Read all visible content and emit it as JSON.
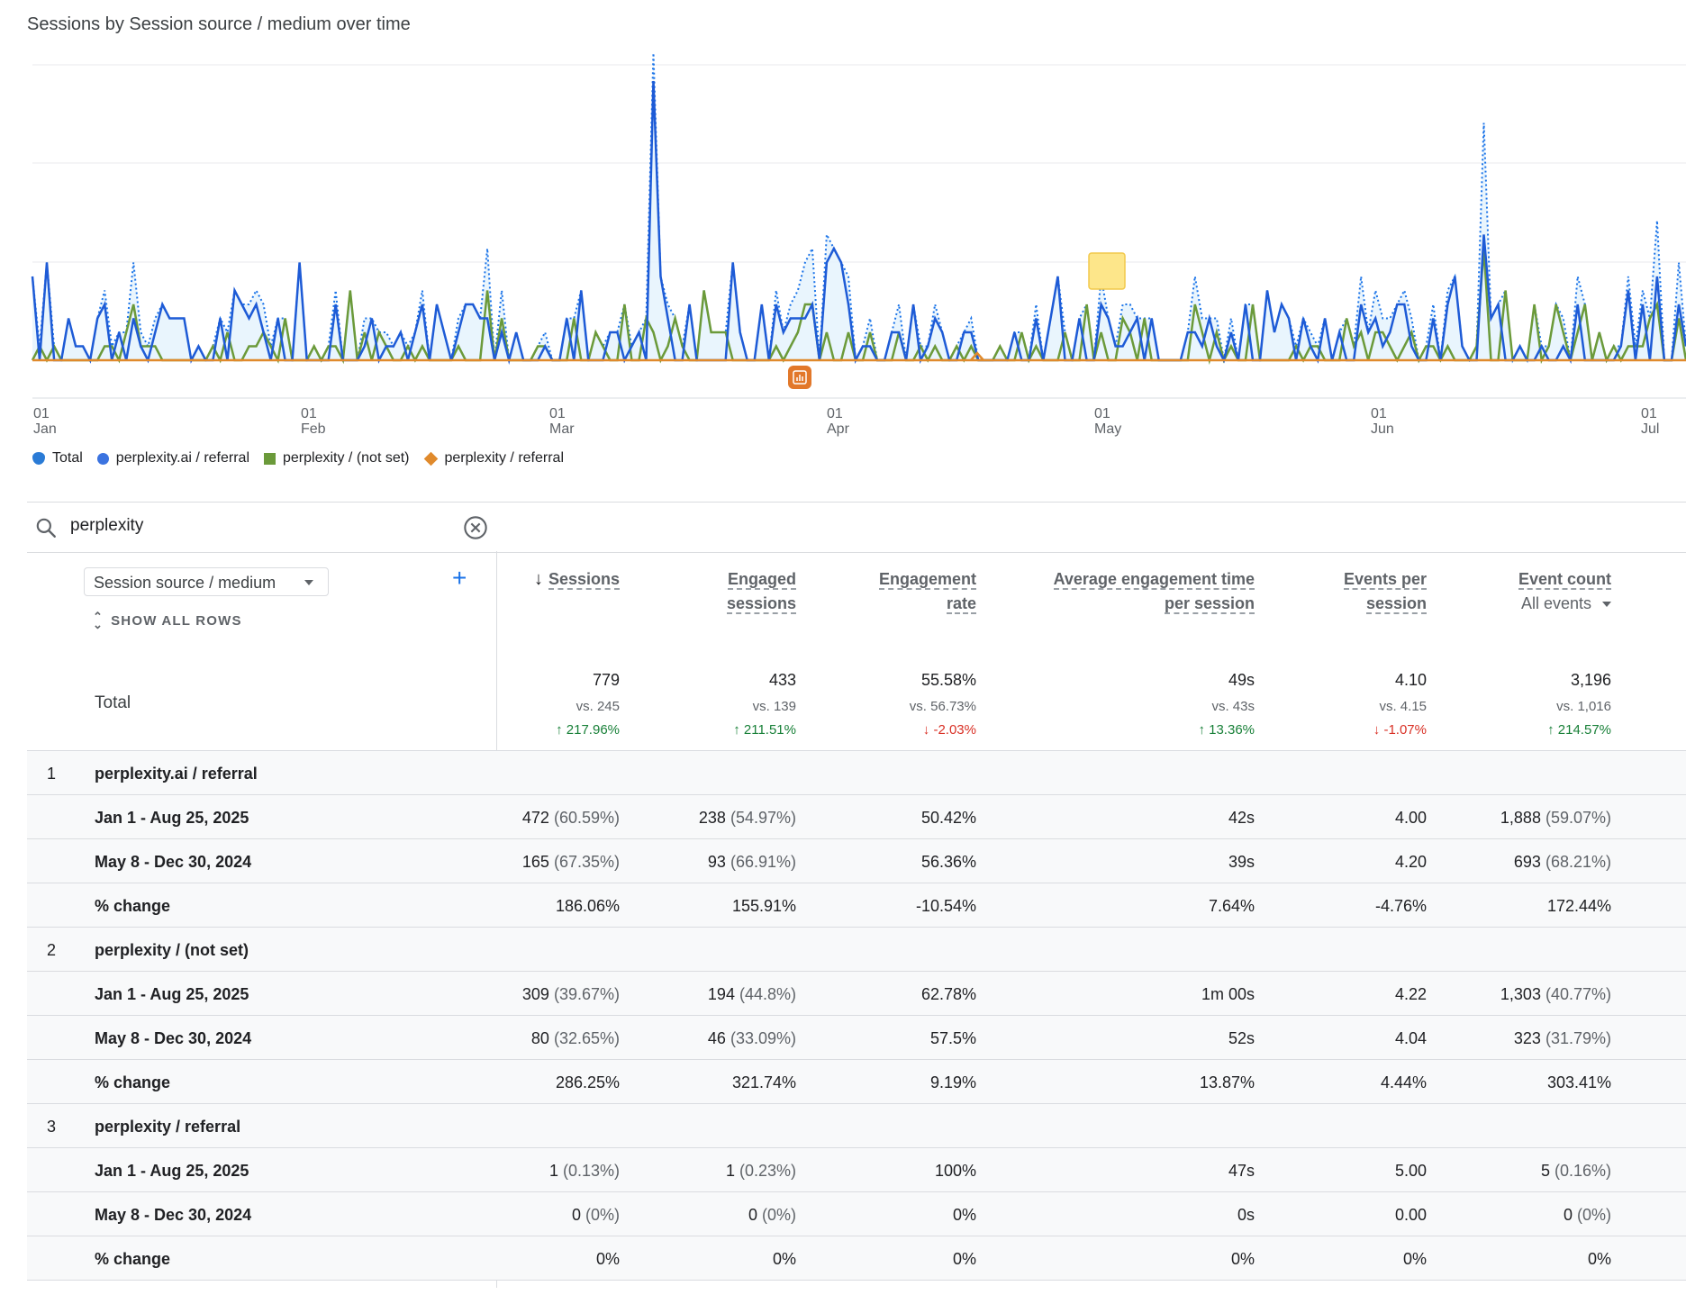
{
  "chart": {
    "title": "Sessions by Session source / medium over time",
    "x_ticks": [
      {
        "day": "01",
        "month": "Jan"
      },
      {
        "day": "01",
        "month": "Feb"
      },
      {
        "day": "01",
        "month": "Mar"
      },
      {
        "day": "01",
        "month": "Apr"
      },
      {
        "day": "01",
        "month": "May"
      },
      {
        "day": "01",
        "month": "Jun"
      },
      {
        "day": "01",
        "month": "Jul"
      }
    ],
    "colors": {
      "total": "#1a73e8",
      "perplexity_ai_referral": "#1e5bd6",
      "perplexity_not_set": "#6b9a3a",
      "perplexity_referral": "#e08a2c",
      "gridline": "#e8eaed",
      "fill": "#e3f2fd"
    }
  },
  "legend": [
    {
      "label": "Total",
      "shape": "total",
      "color": "#2a7bd6"
    },
    {
      "label": "perplexity.ai / referral",
      "shape": "dot",
      "color": "#3b73e0"
    },
    {
      "label": "perplexity / (not set)",
      "shape": "square",
      "color": "#6b9a3a"
    },
    {
      "label": "perplexity / referral",
      "shape": "diamond",
      "color": "#e08a2c"
    }
  ],
  "search": {
    "value": "perplexity"
  },
  "table": {
    "dimension_select": "Session source / medium",
    "add_label": "+",
    "show_all_rows": "SHOW ALL ROWS",
    "total_label": "Total",
    "columns": [
      {
        "line1": "Sessions",
        "line2": "",
        "sorted": true
      },
      {
        "line1": "Engaged",
        "line2": "sessions"
      },
      {
        "line1": "Engagement",
        "line2": "rate"
      },
      {
        "line1": "Average engagement time",
        "line2": "per session"
      },
      {
        "line1": "Events per",
        "line2": "session"
      },
      {
        "line1": "Event count",
        "line2": "All events",
        "select": true
      }
    ],
    "totals": [
      {
        "value": "779",
        "vs": "vs. 245",
        "change": "↑ 217.96%",
        "dir": "up"
      },
      {
        "value": "433",
        "vs": "vs. 139",
        "change": "↑ 211.51%",
        "dir": "up"
      },
      {
        "value": "55.58%",
        "vs": "vs. 56.73%",
        "change": "↓ -2.03%",
        "dir": "down"
      },
      {
        "value": "49s",
        "vs": "vs. 43s",
        "change": "↑ 13.36%",
        "dir": "up"
      },
      {
        "value": "4.10",
        "vs": "vs. 4.15",
        "change": "↓ -1.07%",
        "dir": "down"
      },
      {
        "value": "3,196",
        "vs": "vs. 1,016",
        "change": "↑ 214.57%",
        "dir": "up"
      }
    ],
    "groups": [
      {
        "index": "1",
        "name": "perplexity.ai / referral",
        "rows": [
          {
            "label": "Jan 1 - Aug 25, 2025",
            "cells": [
              [
                "472",
                "(60.59%)"
              ],
              [
                "238",
                "(54.97%)"
              ],
              [
                "50.42%",
                ""
              ],
              [
                "42s",
                ""
              ],
              [
                "4.00",
                ""
              ],
              [
                "1,888",
                "(59.07%)"
              ]
            ]
          },
          {
            "label": "May 8 - Dec 30, 2024",
            "cells": [
              [
                "165",
                "(67.35%)"
              ],
              [
                "93",
                "(66.91%)"
              ],
              [
                "56.36%",
                ""
              ],
              [
                "39s",
                ""
              ],
              [
                "4.20",
                ""
              ],
              [
                "693",
                "(68.21%)"
              ]
            ]
          },
          {
            "label": "% change",
            "cells": [
              [
                "186.06%",
                ""
              ],
              [
                "155.91%",
                ""
              ],
              [
                "-10.54%",
                ""
              ],
              [
                "7.64%",
                ""
              ],
              [
                "-4.76%",
                ""
              ],
              [
                "172.44%",
                ""
              ]
            ]
          }
        ]
      },
      {
        "index": "2",
        "name": "perplexity / (not set)",
        "rows": [
          {
            "label": "Jan 1 - Aug 25, 2025",
            "cells": [
              [
                "309",
                "(39.67%)"
              ],
              [
                "194",
                "(44.8%)"
              ],
              [
                "62.78%",
                ""
              ],
              [
                "1m 00s",
                ""
              ],
              [
                "4.22",
                ""
              ],
              [
                "1,303",
                "(40.77%)"
              ]
            ]
          },
          {
            "label": "May 8 - Dec 30, 2024",
            "cells": [
              [
                "80",
                "(32.65%)"
              ],
              [
                "46",
                "(33.09%)"
              ],
              [
                "57.5%",
                ""
              ],
              [
                "52s",
                ""
              ],
              [
                "4.04",
                ""
              ],
              [
                "323",
                "(31.79%)"
              ]
            ]
          },
          {
            "label": "% change",
            "cells": [
              [
                "286.25%",
                ""
              ],
              [
                "321.74%",
                ""
              ],
              [
                "9.19%",
                ""
              ],
              [
                "13.87%",
                ""
              ],
              [
                "4.44%",
                ""
              ],
              [
                "303.41%",
                ""
              ]
            ]
          }
        ]
      },
      {
        "index": "3",
        "name": "perplexity / referral",
        "rows": [
          {
            "label": "Jan 1 - Aug 25, 2025",
            "cells": [
              [
                "1",
                "(0.13%)"
              ],
              [
                "1",
                "(0.23%)"
              ],
              [
                "100%",
                ""
              ],
              [
                "47s",
                ""
              ],
              [
                "5.00",
                ""
              ],
              [
                "5",
                "(0.16%)"
              ]
            ]
          },
          {
            "label": "May 8 - Dec 30, 2024",
            "cells": [
              [
                "0",
                "(0%)"
              ],
              [
                "0",
                "(0%)"
              ],
              [
                "0%",
                ""
              ],
              [
                "0s",
                ""
              ],
              [
                "0.00",
                ""
              ],
              [
                "0",
                "(0%)"
              ]
            ]
          },
          {
            "label": "% change",
            "cells": [
              [
                "0%",
                ""
              ],
              [
                "0%",
                ""
              ],
              [
                "0%",
                ""
              ],
              [
                "0%",
                ""
              ],
              [
                "0%",
                ""
              ],
              [
                "0%",
                ""
              ]
            ]
          }
        ]
      }
    ]
  }
}
